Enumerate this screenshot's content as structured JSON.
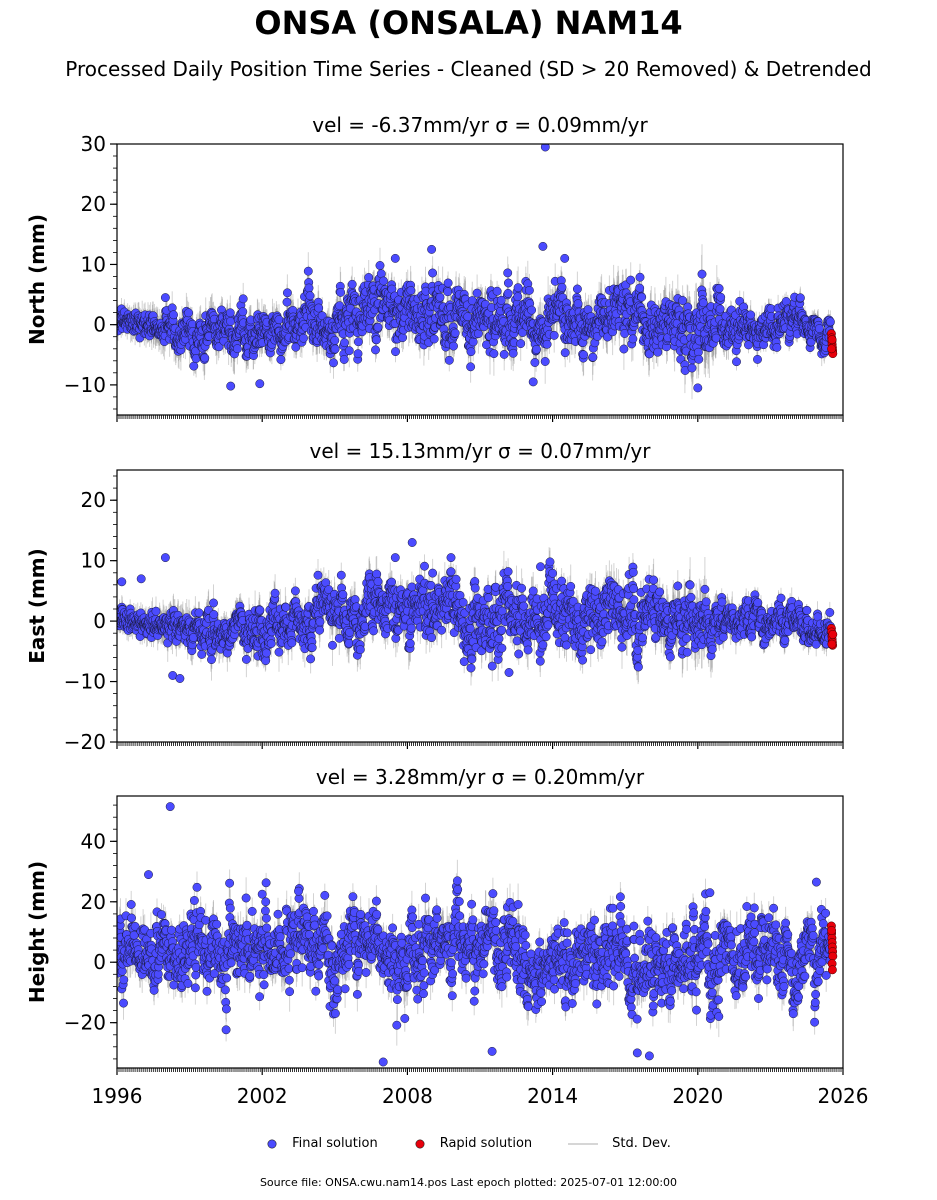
{
  "title": "ONSA (ONSALA) NAM14",
  "subtitle": "Processed Daily Position Time Series - Cleaned (SD > 20 Removed) & Detrended",
  "legend": {
    "final": "Final solution",
    "rapid": "Rapid solution",
    "stddev": "Std. Dev."
  },
  "footer": {
    "text": "Source file: ONSA.cwu.nam14.pos  Last epoch plotted: 2025-07-01 12:00:00"
  },
  "colors": {
    "final": "#4b4bff",
    "rapid": "#e8000b",
    "stddev": "#808080"
  },
  "chart_data": [
    {
      "type": "scatter",
      "title": "vel = -6.37mm/yr   σ = 0.09mm/yr",
      "ylabel": "North (mm)",
      "xlim": [
        1996,
        2026
      ],
      "ylim": [
        -15,
        30
      ],
      "yticks": [
        -10,
        0,
        10,
        20,
        30
      ],
      "xticks": [
        1996,
        2002,
        2008,
        2014,
        2020,
        2026
      ],
      "show_xtick_labels": false,
      "anchors": [
        [
          1996.0,
          0.5
        ],
        [
          1997.0,
          0.0
        ],
        [
          1998.0,
          -1.0
        ],
        [
          1999.0,
          -3.0
        ],
        [
          2000.0,
          -2.0
        ],
        [
          2001.0,
          -1.5
        ],
        [
          2002.0,
          -1.0
        ],
        [
          2003.0,
          0.0
        ],
        [
          2004.0,
          0.5
        ],
        [
          2005.0,
          0.5
        ],
        [
          2006.0,
          1.5
        ],
        [
          2007.0,
          3.0
        ],
        [
          2008.0,
          2.0
        ],
        [
          2009.0,
          1.5
        ],
        [
          2010.0,
          1.0
        ],
        [
          2011.0,
          1.5
        ],
        [
          2012.0,
          0.5
        ],
        [
          2013.0,
          0.0
        ],
        [
          2014.0,
          1.5
        ],
        [
          2015.0,
          1.0
        ],
        [
          2016.0,
          0.5
        ],
        [
          2017.0,
          0.5
        ],
        [
          2018.0,
          0.5
        ],
        [
          2019.0,
          1.0
        ],
        [
          2020.0,
          0.5
        ],
        [
          2021.0,
          -0.5
        ],
        [
          2022.0,
          -1.0
        ],
        [
          2023.0,
          0.0
        ],
        [
          2024.0,
          0.5
        ],
        [
          2025.0,
          -0.5
        ],
        [
          2025.5,
          -1.0
        ]
      ],
      "amplitude": [
        [
          1996.0,
          1.0
        ],
        [
          1997.5,
          0.8
        ],
        [
          1998.0,
          2.5
        ],
        [
          2003.0,
          3.0
        ],
        [
          2006.5,
          4.0
        ],
        [
          2015.0,
          3.5
        ],
        [
          2019.0,
          3.5
        ],
        [
          2021.0,
          3.0
        ],
        [
          2025.5,
          2.0
        ]
      ],
      "sd": [
        [
          1996.0,
          1.5
        ],
        [
          1998.0,
          2.5
        ],
        [
          2007.0,
          2.5
        ],
        [
          2019.0,
          3.0
        ],
        [
          2020.4,
          4.5
        ],
        [
          2021.0,
          2.0
        ],
        [
          2025.5,
          1.5
        ]
      ],
      "outliers": [
        [
          2013.7,
          29.5
        ],
        [
          2013.6,
          13.0
        ],
        [
          2009.0,
          12.5
        ],
        [
          2014.5,
          11.0
        ],
        [
          2007.5,
          11.0
        ],
        [
          2020.0,
          -10.5
        ],
        [
          2000.7,
          -10.2
        ],
        [
          2001.9,
          -9.8
        ],
        [
          2013.2,
          -9.5
        ],
        [
          1998.0,
          4.5
        ]
      ],
      "rapid": [
        [
          2025.52,
          -1.5
        ],
        [
          2025.53,
          -2.2
        ],
        [
          2025.54,
          -2.8
        ],
        [
          2025.55,
          -3.3
        ],
        [
          2025.56,
          -3.8
        ],
        [
          2025.57,
          -4.3
        ],
        [
          2025.58,
          -4.8
        ],
        [
          2025.55,
          -2.5
        ],
        [
          2025.53,
          -4.0
        ]
      ]
    },
    {
      "type": "scatter",
      "title": "vel = 15.13mm/yr   σ = 0.07mm/yr",
      "ylabel": "East (mm)",
      "xlim": [
        1996,
        2026
      ],
      "ylim": [
        -20,
        25
      ],
      "yticks": [
        -20,
        -10,
        0,
        10,
        20
      ],
      "xticks": [
        1996,
        2002,
        2008,
        2014,
        2020,
        2026
      ],
      "show_xtick_labels": false,
      "anchors": [
        [
          1996.0,
          0.5
        ],
        [
          1997.0,
          -0.5
        ],
        [
          1998.0,
          -0.5
        ],
        [
          1999.0,
          -2.5
        ],
        [
          2000.0,
          -3.0
        ],
        [
          2001.0,
          -1.5
        ],
        [
          2002.0,
          -2.0
        ],
        [
          2003.0,
          -1.0
        ],
        [
          2004.0,
          0.0
        ],
        [
          2005.0,
          0.0
        ],
        [
          2006.0,
          0.5
        ],
        [
          2007.0,
          1.5
        ],
        [
          2008.0,
          2.5
        ],
        [
          2009.0,
          3.0
        ],
        [
          2010.0,
          1.0
        ],
        [
          2011.0,
          0.0
        ],
        [
          2012.0,
          0.0
        ],
        [
          2013.0,
          0.5
        ],
        [
          2014.0,
          1.0
        ],
        [
          2015.0,
          0.5
        ],
        [
          2016.0,
          0.5
        ],
        [
          2017.0,
          0.5
        ],
        [
          2018.0,
          0.5
        ],
        [
          2019.0,
          0.5
        ],
        [
          2020.0,
          1.5
        ],
        [
          2021.0,
          0.0
        ],
        [
          2022.0,
          0.0
        ],
        [
          2023.0,
          0.0
        ],
        [
          2024.0,
          -0.5
        ],
        [
          2025.0,
          -2.0
        ],
        [
          2025.5,
          -2.5
        ]
      ],
      "amplitude": [
        [
          1996.0,
          1.0
        ],
        [
          1997.5,
          0.8
        ],
        [
          1998.0,
          2.0
        ],
        [
          2003.0,
          3.0
        ],
        [
          2007.0,
          4.0
        ],
        [
          2016.0,
          4.5
        ],
        [
          2020.0,
          3.5
        ],
        [
          2021.0,
          2.0
        ],
        [
          2025.5,
          2.0
        ]
      ],
      "sd": [
        [
          1996.0,
          1.5
        ],
        [
          1998.5,
          2.5
        ],
        [
          2006.0,
          2.5
        ],
        [
          2019.0,
          3.0
        ],
        [
          2020.4,
          4.0
        ],
        [
          2021.0,
          2.0
        ],
        [
          2025.5,
          1.5
        ]
      ],
      "outliers": [
        [
          1998.0,
          10.5
        ],
        [
          1996.2,
          6.5
        ],
        [
          1997.0,
          7.0
        ],
        [
          1998.3,
          -9.0
        ],
        [
          1998.6,
          -9.5
        ],
        [
          2007.5,
          10.5
        ],
        [
          2008.2,
          13.0
        ],
        [
          2009.8,
          10.5
        ],
        [
          2012.2,
          -8.5
        ],
        [
          2013.5,
          9.0
        ],
        [
          1999.5,
          -5.5
        ]
      ],
      "rapid": [
        [
          2025.52,
          -1.2
        ],
        [
          2025.53,
          -1.8
        ],
        [
          2025.54,
          -2.5
        ],
        [
          2025.55,
          -3.0
        ],
        [
          2025.56,
          -3.5
        ],
        [
          2025.57,
          -4.0
        ],
        [
          2025.58,
          -2.2
        ],
        [
          2025.54,
          -3.8
        ]
      ]
    },
    {
      "type": "scatter",
      "title": "vel = 3.28mm/yr   σ = 0.20mm/yr",
      "ylabel": "Height (mm)",
      "xlim": [
        1996,
        2026
      ],
      "ylim": [
        -35,
        55
      ],
      "yticks": [
        -20,
        0,
        20,
        40
      ],
      "xticks": [
        1996,
        2002,
        2008,
        2014,
        2020,
        2026
      ],
      "show_xtick_labels": true,
      "anchors": [
        [
          1996.0,
          3.0
        ],
        [
          1997.0,
          2.0
        ],
        [
          1998.0,
          3.0
        ],
        [
          1999.0,
          3.0
        ],
        [
          2000.0,
          4.0
        ],
        [
          2001.0,
          2.0
        ],
        [
          2002.0,
          4.0
        ],
        [
          2003.0,
          6.0
        ],
        [
          2004.0,
          3.0
        ],
        [
          2005.0,
          2.0
        ],
        [
          2006.0,
          2.0
        ],
        [
          2007.0,
          3.0
        ],
        [
          2008.0,
          2.0
        ],
        [
          2009.0,
          3.0
        ],
        [
          2010.0,
          2.0
        ],
        [
          2011.0,
          3.0
        ],
        [
          2012.0,
          2.0
        ],
        [
          2013.0,
          2.0
        ],
        [
          2014.0,
          1.0
        ],
        [
          2015.0,
          1.0
        ],
        [
          2016.0,
          0.0
        ],
        [
          2017.0,
          0.0
        ],
        [
          2018.0,
          -1.0
        ],
        [
          2019.0,
          -1.0
        ],
        [
          2020.0,
          1.0
        ],
        [
          2021.0,
          1.0
        ],
        [
          2022.0,
          2.0
        ],
        [
          2023.0,
          2.0
        ],
        [
          2024.0,
          3.0
        ],
        [
          2025.0,
          4.0
        ],
        [
          2025.5,
          4.0
        ]
      ],
      "amplitude": [
        [
          1996.0,
          9.0
        ],
        [
          2000.0,
          10.0
        ],
        [
          2010.0,
          9.0
        ],
        [
          2018.0,
          10.0
        ],
        [
          2025.5,
          9.0
        ]
      ],
      "sd": [
        [
          1996.0,
          5.0
        ],
        [
          2010.0,
          5.0
        ],
        [
          2020.0,
          5.0
        ],
        [
          2025.5,
          4.5
        ]
      ],
      "outliers": [
        [
          1998.2,
          51.5
        ],
        [
          1997.3,
          29.0
        ],
        [
          2007.0,
          -33.0
        ],
        [
          2018.0,
          -31.0
        ],
        [
          2011.5,
          -29.5
        ],
        [
          2020.5,
          23.0
        ],
        [
          2003.5,
          23.5
        ],
        [
          2024.9,
          26.5
        ],
        [
          2002.0,
          22.5
        ],
        [
          2017.5,
          -30.0
        ]
      ],
      "rapid": [
        [
          2025.52,
          12.0
        ],
        [
          2025.53,
          9.5
        ],
        [
          2025.54,
          8.0
        ],
        [
          2025.55,
          6.5
        ],
        [
          2025.56,
          5.0
        ],
        [
          2025.57,
          3.5
        ],
        [
          2025.58,
          2.0
        ],
        [
          2025.55,
          -0.5
        ],
        [
          2025.56,
          -2.5
        ],
        [
          2025.53,
          10.5
        ]
      ]
    }
  ]
}
